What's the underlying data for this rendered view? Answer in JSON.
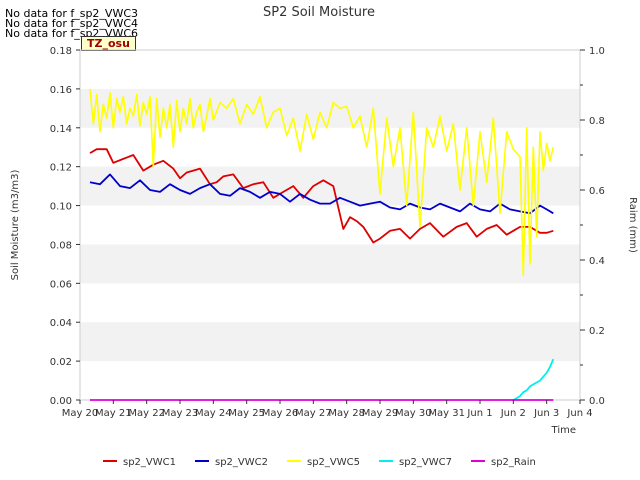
{
  "nodata_notes": [
    "No data for f_sp2_VWC3",
    "No data for f_sp2_VWC4",
    "No data for f_sp2_VWC6"
  ],
  "tz_label": "TZ_osu",
  "chart_data": {
    "type": "line",
    "title": "SP2 Soil Moisture",
    "xlabel": "Time",
    "ylabel": "Soil Moisture (m3/m3)",
    "y2label": "Raim (mm)",
    "xlim": [
      0,
      15
    ],
    "ylim": [
      0,
      0.18
    ],
    "y2lim": [
      0,
      1.0
    ],
    "xticks": [
      0,
      1,
      2,
      3,
      4,
      5,
      6,
      7,
      8,
      9,
      10,
      11,
      12,
      13,
      14,
      15
    ],
    "xtick_labels": [
      "May 20",
      "May 21",
      "May 22",
      "May 23",
      "May 24",
      "May 25",
      "May 26",
      "May 27",
      "May 28",
      "May 29",
      "May 30",
      "May 31",
      "Jun 1",
      "Jun 2",
      "Jun 3",
      "Jun 4"
    ],
    "yticks": [
      0,
      0.02,
      0.04,
      0.06,
      0.08,
      0.1,
      0.12,
      0.14,
      0.16,
      0.18
    ],
    "ytick_labels": [
      "0.00",
      "0.02",
      "0.04",
      "0.06",
      "0.08",
      "0.10",
      "0.12",
      "0.14",
      "0.16",
      "0.18"
    ],
    "y2ticks": [
      0,
      0.2,
      0.4,
      0.6,
      0.8,
      1.0
    ],
    "y2tick_labels": [
      "0.0",
      "0.2",
      "0.4",
      "0.6",
      "0.8",
      "1.0"
    ],
    "grid": "horizontal bands",
    "legend_position": "bottom",
    "series": [
      {
        "name": "sp2_VWC1",
        "color": "#dd0000",
        "x": [
          0.3,
          0.5,
          0.8,
          1.0,
          1.3,
          1.6,
          1.9,
          2.2,
          2.5,
          2.8,
          3.0,
          3.2,
          3.4,
          3.6,
          3.9,
          4.1,
          4.3,
          4.6,
          4.9,
          5.2,
          5.5,
          5.8,
          6.1,
          6.4,
          6.7,
          7.0,
          7.3,
          7.6,
          7.9,
          8.1,
          8.3,
          8.5,
          8.8,
          9.0,
          9.3,
          9.6,
          9.9,
          10.2,
          10.5,
          10.9,
          11.3,
          11.6,
          11.9,
          12.2,
          12.5,
          12.8,
          13.0,
          13.2,
          13.5,
          13.8,
          14.0,
          14.2
        ],
        "y": [
          0.127,
          0.129,
          0.129,
          0.122,
          0.124,
          0.126,
          0.118,
          0.121,
          0.123,
          0.119,
          0.114,
          0.117,
          0.118,
          0.119,
          0.111,
          0.112,
          0.115,
          0.116,
          0.109,
          0.111,
          0.112,
          0.104,
          0.107,
          0.11,
          0.104,
          0.11,
          0.113,
          0.11,
          0.088,
          0.094,
          0.092,
          0.089,
          0.081,
          0.083,
          0.087,
          0.088,
          0.083,
          0.088,
          0.091,
          0.084,
          0.089,
          0.091,
          0.084,
          0.088,
          0.09,
          0.085,
          0.087,
          0.089,
          0.089,
          0.086,
          0.086,
          0.087
        ]
      },
      {
        "name": "sp2_VWC2",
        "color": "#0000cc",
        "x": [
          0.3,
          0.6,
          0.9,
          1.2,
          1.5,
          1.8,
          2.1,
          2.4,
          2.7,
          3.0,
          3.3,
          3.6,
          3.9,
          4.2,
          4.5,
          4.8,
          5.1,
          5.4,
          5.7,
          6.0,
          6.3,
          6.6,
          6.9,
          7.2,
          7.5,
          7.8,
          8.1,
          8.4,
          8.7,
          9.0,
          9.3,
          9.6,
          9.9,
          10.2,
          10.5,
          10.8,
          11.1,
          11.4,
          11.7,
          12.0,
          12.3,
          12.6,
          12.9,
          13.2,
          13.5,
          13.8,
          14.0,
          14.2
        ],
        "y": [
          0.112,
          0.111,
          0.116,
          0.11,
          0.109,
          0.113,
          0.108,
          0.107,
          0.111,
          0.108,
          0.106,
          0.109,
          0.111,
          0.106,
          0.105,
          0.109,
          0.107,
          0.104,
          0.107,
          0.106,
          0.102,
          0.106,
          0.103,
          0.101,
          0.101,
          0.104,
          0.102,
          0.1,
          0.101,
          0.102,
          0.099,
          0.098,
          0.101,
          0.099,
          0.098,
          0.101,
          0.099,
          0.097,
          0.101,
          0.098,
          0.097,
          0.101,
          0.098,
          0.097,
          0.096,
          0.1,
          0.098,
          0.096
        ]
      },
      {
        "name": "sp2_VWC5",
        "color": "#ffff00",
        "x": [
          0.3,
          0.4,
          0.5,
          0.6,
          0.7,
          0.8,
          0.9,
          1.0,
          1.1,
          1.2,
          1.3,
          1.4,
          1.5,
          1.6,
          1.7,
          1.8,
          1.9,
          2.0,
          2.1,
          2.2,
          2.3,
          2.4,
          2.5,
          2.6,
          2.7,
          2.8,
          2.9,
          3.0,
          3.1,
          3.2,
          3.3,
          3.4,
          3.5,
          3.6,
          3.7,
          3.8,
          3.9,
          4.0,
          4.2,
          4.4,
          4.6,
          4.8,
          5.0,
          5.2,
          5.4,
          5.6,
          5.8,
          6.0,
          6.2,
          6.4,
          6.6,
          6.8,
          7.0,
          7.2,
          7.4,
          7.6,
          7.8,
          8.0,
          8.2,
          8.4,
          8.6,
          8.8,
          9.0,
          9.2,
          9.4,
          9.6,
          9.8,
          10.0,
          10.2,
          10.4,
          10.6,
          10.8,
          11.0,
          11.2,
          11.4,
          11.6,
          11.8,
          12.0,
          12.2,
          12.4,
          12.6,
          12.8,
          13.0,
          13.2,
          13.3,
          13.4,
          13.5,
          13.6,
          13.7,
          13.8,
          13.9,
          14.0,
          14.1,
          14.2
        ],
        "y": [
          0.16,
          0.142,
          0.157,
          0.138,
          0.152,
          0.145,
          0.158,
          0.14,
          0.155,
          0.148,
          0.156,
          0.142,
          0.15,
          0.146,
          0.157,
          0.141,
          0.153,
          0.147,
          0.156,
          0.12,
          0.155,
          0.135,
          0.15,
          0.14,
          0.152,
          0.13,
          0.154,
          0.138,
          0.15,
          0.142,
          0.155,
          0.14,
          0.148,
          0.152,
          0.138,
          0.146,
          0.155,
          0.144,
          0.153,
          0.15,
          0.155,
          0.142,
          0.152,
          0.147,
          0.156,
          0.14,
          0.148,
          0.15,
          0.136,
          0.145,
          0.128,
          0.147,
          0.134,
          0.148,
          0.14,
          0.153,
          0.15,
          0.151,
          0.14,
          0.146,
          0.13,
          0.15,
          0.106,
          0.145,
          0.12,
          0.14,
          0.1,
          0.148,
          0.089,
          0.14,
          0.13,
          0.146,
          0.128,
          0.142,
          0.108,
          0.14,
          0.1,
          0.138,
          0.112,
          0.145,
          0.096,
          0.138,
          0.129,
          0.125,
          0.064,
          0.14,
          0.07,
          0.13,
          0.084,
          0.138,
          0.118,
          0.132,
          0.123,
          0.13
        ]
      },
      {
        "name": "sp2_VWC7",
        "color": "#00eeee",
        "x": [
          13.0,
          13.1,
          13.2,
          13.3,
          13.4,
          13.5,
          13.6,
          13.7,
          13.8,
          13.9,
          14.0,
          14.1,
          14.2
        ],
        "y": [
          0.0,
          0.001,
          0.002,
          0.004,
          0.005,
          0.007,
          0.008,
          0.009,
          0.01,
          0.012,
          0.014,
          0.017,
          0.021
        ]
      },
      {
        "name": "sp2_Rain",
        "color": "#dd00dd",
        "axis": "right",
        "x": [
          0.3,
          14.2
        ],
        "y": [
          0.0,
          0.0
        ]
      }
    ]
  }
}
